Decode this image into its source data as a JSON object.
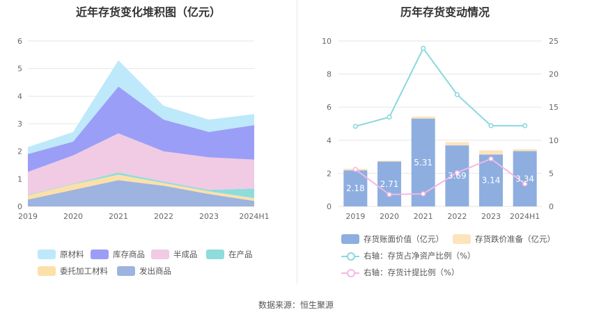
{
  "source_label": "数据来源：恒生聚源",
  "chart_data": [
    {
      "type": "area",
      "title": "近年存货变化堆积图（亿元）",
      "categories": [
        "2019",
        "2020",
        "2021",
        "2022",
        "2023",
        "2024H1"
      ],
      "stacked": true,
      "ylim": [
        0,
        6
      ],
      "yticks": [
        0,
        1,
        2,
        3,
        4,
        5,
        6
      ],
      "grid": true,
      "legend_position": "bottom",
      "series": [
        {
          "name": "发出商品",
          "color": "#9db3e0",
          "values": [
            0.25,
            0.6,
            0.95,
            0.75,
            0.45,
            0.2
          ]
        },
        {
          "name": "委托加工材料",
          "color": "#fde0a8",
          "values": [
            0.15,
            0.2,
            0.2,
            0.1,
            0.1,
            0.1
          ]
        },
        {
          "name": "在产品",
          "color": "#8fdcdc",
          "values": [
            0.02,
            0.02,
            0.08,
            0.05,
            0.05,
            0.35
          ]
        },
        {
          "name": "半成品",
          "color": "#f0cbe3",
          "values": [
            0.83,
            1.03,
            1.42,
            1.1,
            1.18,
            1.05
          ]
        },
        {
          "name": "库存商品",
          "color": "#9b9ef7",
          "values": [
            0.65,
            0.5,
            1.7,
            1.15,
            0.92,
            1.25
          ]
        },
        {
          "name": "原材料",
          "color": "#bde9fb",
          "values": [
            0.25,
            0.35,
            0.95,
            0.5,
            0.45,
            0.4
          ]
        }
      ]
    },
    {
      "type": "bar",
      "title": "历年存货变动情况",
      "categories": [
        "2019",
        "2020",
        "2021",
        "2022",
        "2023",
        "2024H1"
      ],
      "ylim": [
        0,
        10
      ],
      "yticks": [
        0,
        2,
        4,
        6,
        8,
        10
      ],
      "y2lim": [
        0,
        25
      ],
      "y2ticks": [
        0,
        5,
        10,
        15,
        20,
        25
      ],
      "grid": true,
      "legend_position": "bottom",
      "bar_series": [
        {
          "name": "存货账面价值（亿元）",
          "color": "#8eaee0",
          "values": [
            2.18,
            2.71,
            5.31,
            3.69,
            3.14,
            3.34
          ],
          "labels": [
            "2.18",
            "2.71",
            "5.31",
            "3.69",
            "3.14",
            "3.34"
          ]
        },
        {
          "name": "存货跌价准备（亿元）",
          "color": "#fde4bd",
          "values": [
            0.1,
            0.05,
            0.12,
            0.2,
            0.25,
            0.12
          ]
        }
      ],
      "line_series": [
        {
          "name": "右轴：存货占净资产比例（%）",
          "color": "#89d8df",
          "axis": "right",
          "values": [
            12.1,
            13.5,
            23.9,
            16.9,
            12.2,
            12.2
          ]
        },
        {
          "name": "右轴：存货计提比例（%）",
          "color": "#f2b8e2",
          "axis": "right",
          "values": [
            5.6,
            1.8,
            1.9,
            5.1,
            7.2,
            3.4
          ]
        }
      ]
    }
  ]
}
